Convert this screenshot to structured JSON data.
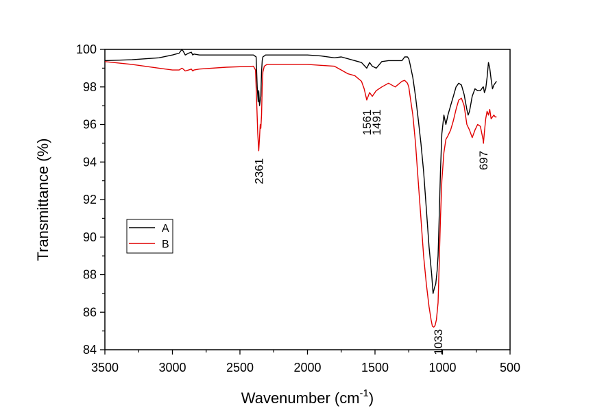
{
  "chart_data": {
    "type": "line",
    "title": "",
    "xlabel_main": "Wavenumber (cm",
    "xlabel_sup": "-1",
    "xlabel_close": ")",
    "ylabel": "Transmittance (%)",
    "xlim": [
      3500,
      500
    ],
    "ylim": [
      84,
      100
    ],
    "xticks": [
      3500,
      3000,
      2500,
      2000,
      1500,
      1000,
      500
    ],
    "yticks": [
      84,
      86,
      88,
      90,
      92,
      94,
      96,
      98,
      100
    ],
    "legend_position": "left-middle",
    "series": [
      {
        "name": "A",
        "color": "#000000",
        "x": [
          3500,
          3300,
          3100,
          3000,
          2950,
          2930,
          2920,
          2905,
          2880,
          2860,
          2850,
          2840,
          2800,
          2600,
          2400,
          2380,
          2372,
          2365,
          2361,
          2355,
          2345,
          2340,
          2335,
          2330,
          2320,
          2310,
          2300,
          2200,
          2000,
          1900,
          1800,
          1750,
          1700,
          1650,
          1600,
          1561,
          1540,
          1520,
          1491,
          1450,
          1400,
          1350,
          1300,
          1280,
          1260,
          1250,
          1240,
          1220,
          1200,
          1180,
          1160,
          1140,
          1120,
          1100,
          1080,
          1070,
          1060,
          1050,
          1040,
          1033,
          1025,
          1015,
          1005,
          990,
          975,
          960,
          940,
          920,
          900,
          880,
          860,
          840,
          820,
          810,
          800,
          780,
          760,
          740,
          720,
          700,
          697,
          690,
          680,
          670,
          660,
          650,
          640,
          630,
          620,
          610,
          600
        ],
        "y": [
          99.4,
          99.45,
          99.55,
          99.7,
          99.8,
          100.0,
          99.9,
          99.7,
          99.8,
          99.85,
          99.7,
          99.75,
          99.7,
          99.7,
          99.7,
          99.6,
          98.0,
          97.2,
          97.8,
          97.0,
          97.5,
          98.8,
          99.4,
          99.6,
          99.65,
          99.7,
          99.7,
          99.7,
          99.7,
          99.65,
          99.55,
          99.6,
          99.5,
          99.4,
          99.3,
          99.0,
          99.3,
          99.1,
          99.0,
          99.35,
          99.4,
          99.4,
          99.4,
          99.6,
          99.6,
          99.5,
          99.2,
          98.5,
          97.5,
          96.3,
          95.0,
          93.5,
          91.5,
          89.5,
          88.0,
          87.0,
          87.3,
          87.5,
          88.2,
          89.0,
          91.0,
          93.5,
          95.5,
          96.5,
          96.0,
          96.5,
          97.0,
          97.5,
          98.0,
          98.2,
          98.1,
          97.6,
          96.8,
          96.5,
          96.7,
          97.5,
          97.9,
          97.8,
          97.8,
          98.0,
          98.0,
          97.7,
          97.9,
          98.5,
          99.3,
          99.0,
          98.4,
          97.9,
          98.1,
          98.2,
          98.3
        ]
      },
      {
        "name": "B",
        "color": "#e00000",
        "x": [
          3500,
          3300,
          3100,
          3000,
          2950,
          2930,
          2920,
          2905,
          2880,
          2860,
          2850,
          2840,
          2800,
          2600,
          2400,
          2385,
          2375,
          2368,
          2361,
          2356,
          2350,
          2345,
          2340,
          2335,
          2330,
          2320,
          2310,
          2300,
          2200,
          2000,
          1900,
          1800,
          1750,
          1700,
          1650,
          1600,
          1580,
          1561,
          1540,
          1520,
          1491,
          1450,
          1400,
          1350,
          1300,
          1280,
          1260,
          1250,
          1240,
          1220,
          1200,
          1180,
          1160,
          1140,
          1120,
          1100,
          1085,
          1075,
          1065,
          1055,
          1045,
          1033,
          1025,
          1015,
          1005,
          990,
          975,
          960,
          940,
          920,
          900,
          880,
          860,
          840,
          820,
          800,
          780,
          760,
          740,
          720,
          700,
          697,
          690,
          680,
          670,
          660,
          650,
          640,
          630,
          620,
          610,
          600
        ],
        "y": [
          99.35,
          99.2,
          99.0,
          98.9,
          98.9,
          99.0,
          98.95,
          98.85,
          98.9,
          98.95,
          98.85,
          98.9,
          98.95,
          99.05,
          99.1,
          98.9,
          97.0,
          95.5,
          94.6,
          95.2,
          96.0,
          95.8,
          96.5,
          98.0,
          98.8,
          99.1,
          99.15,
          99.2,
          99.2,
          99.2,
          99.15,
          99.1,
          98.9,
          98.7,
          98.6,
          98.3,
          97.9,
          97.3,
          97.7,
          97.5,
          97.8,
          98.0,
          98.2,
          98.0,
          98.3,
          98.35,
          98.2,
          98.0,
          97.5,
          96.5,
          95.0,
          93.0,
          91.0,
          89.0,
          87.5,
          86.3,
          85.6,
          85.25,
          85.2,
          85.3,
          85.6,
          86.5,
          88.5,
          91.0,
          93.0,
          94.5,
          95.2,
          95.4,
          95.7,
          96.2,
          96.8,
          97.3,
          97.4,
          97.0,
          96.0,
          95.7,
          95.3,
          95.7,
          96.0,
          95.9,
          95.2,
          95.0,
          95.6,
          96.3,
          96.7,
          96.5,
          96.8,
          96.3,
          96.4,
          96.5,
          96.4,
          96.4
        ]
      }
    ],
    "annotations": [
      {
        "text": "2361",
        "x": 2361,
        "y": 94.2
      },
      {
        "text": "1561",
        "x": 1561,
        "y": 96.8
      },
      {
        "text": "1491",
        "x": 1491,
        "y": 96.8
      },
      {
        "text": "1033",
        "x": 1033,
        "y": 85.1
      },
      {
        "text": "697",
        "x": 697,
        "y": 94.6
      }
    ]
  }
}
